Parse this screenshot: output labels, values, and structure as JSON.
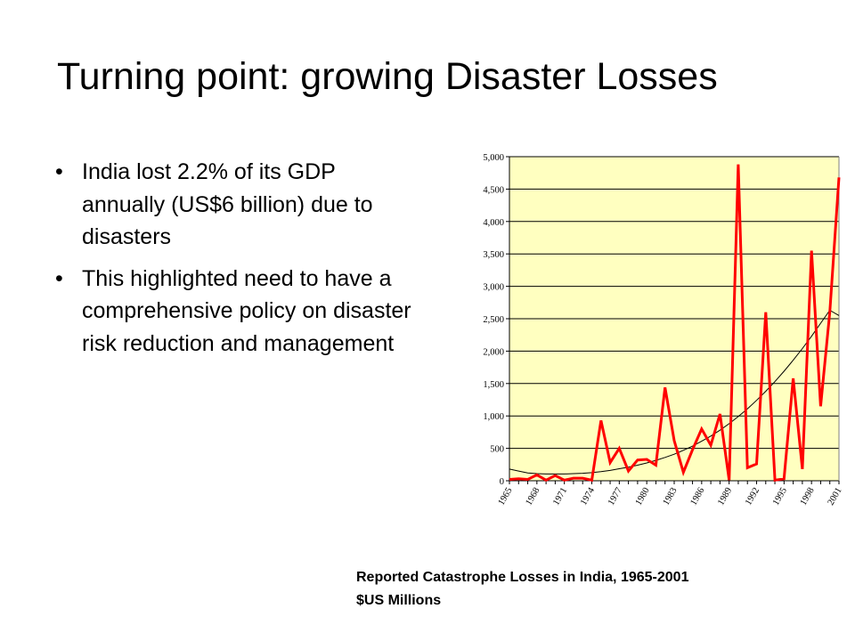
{
  "slide": {
    "title": "Turning point: growing Disaster Losses",
    "bullets": [
      " India lost 2.2% of its GDP annually   (US$6 billion) due to disasters",
      "This highlighted need to have a comprehensive policy on disaster risk reduction and management"
    ],
    "caption_line1": "Reported Catastrophe Losses in India, 1965-2001",
    "caption_line2": "$US Millions"
  },
  "chart_data": {
    "type": "line",
    "title": "",
    "xlabel": "",
    "ylabel": "",
    "ylim": [
      0,
      5000
    ],
    "yticks": [
      0,
      500,
      1000,
      1500,
      2000,
      2500,
      3000,
      3500,
      4000,
      4500,
      5000
    ],
    "ytick_labels": [
      "0",
      "500",
      "1,000",
      "1,500",
      "2,000",
      "2,500",
      "3,000",
      "3,500",
      "4,000",
      "4,500",
      "5,000"
    ],
    "x": [
      1965,
      1966,
      1967,
      1968,
      1969,
      1970,
      1971,
      1972,
      1973,
      1974,
      1975,
      1976,
      1977,
      1978,
      1979,
      1980,
      1981,
      1982,
      1983,
      1984,
      1985,
      1986,
      1987,
      1988,
      1989,
      1990,
      1991,
      1992,
      1993,
      1994,
      1995,
      1996,
      1997,
      1998,
      1999,
      2000,
      2001
    ],
    "xtick_labels": [
      "1965",
      "1968",
      "1971",
      "1974",
      "1977",
      "1980",
      "1983",
      "1986",
      "1989",
      "1992",
      "1995",
      "1998",
      "2001"
    ],
    "grid": true,
    "plot_background": "#ffffc0",
    "series": [
      {
        "color": "#ff0000",
        "values": [
          20,
          30,
          20,
          90,
          10,
          80,
          10,
          40,
          40,
          10,
          930,
          280,
          500,
          150,
          320,
          330,
          240,
          1440,
          620,
          130,
          480,
          800,
          550,
          1030,
          10,
          4880,
          200,
          260,
          2600,
          10,
          30,
          1580,
          180,
          3550,
          1150,
          2600,
          4680
        ]
      },
      {
        "color": "#000000",
        "values": [
          180,
          150,
          120,
          110,
          105,
          105,
          105,
          110,
          115,
          125,
          140,
          160,
          185,
          210,
          240,
          275,
          315,
          360,
          410,
          470,
          535,
          610,
          690,
          780,
          880,
          990,
          1110,
          1240,
          1380,
          1530,
          1690,
          1860,
          2040,
          2230,
          2430,
          2630,
          2550
        ]
      }
    ]
  }
}
